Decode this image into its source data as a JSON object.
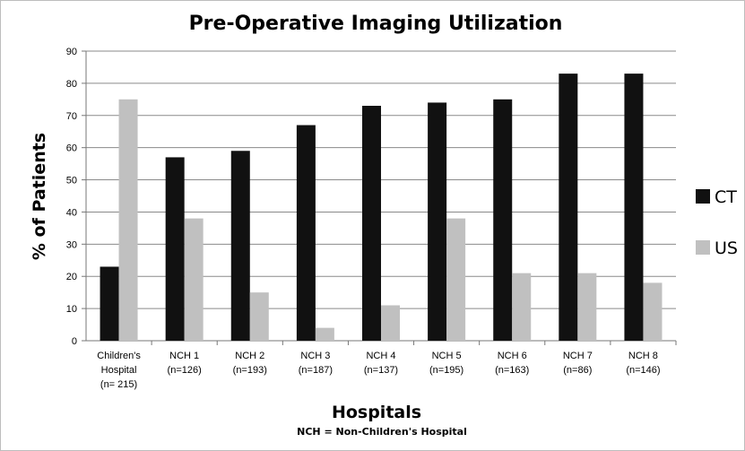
{
  "chart_data": {
    "type": "bar",
    "title": "Pre-Operative Imaging Utilization",
    "xlabel": "Hospitals",
    "ylabel": "% of Patients",
    "footnote": "NCH = Non-Children's Hospital",
    "ylim": [
      0,
      90
    ],
    "yticks": [
      0,
      10,
      20,
      30,
      40,
      50,
      60,
      70,
      80,
      90
    ],
    "grid": "horizontal",
    "legend_position": "right",
    "categories": [
      [
        "Children's",
        "Hospital",
        "(n= 215)"
      ],
      [
        "NCH 1",
        "(n=126)"
      ],
      [
        "NCH 2",
        "(n=193)"
      ],
      [
        "NCH 3",
        "(n=187)"
      ],
      [
        "NCH 4",
        "(n=137)"
      ],
      [
        "NCH 5",
        "(n=195)"
      ],
      [
        "NCH 6",
        "(n=163)"
      ],
      [
        "NCH 7",
        "(n=86)"
      ],
      [
        "NCH 8",
        "(n=146)"
      ]
    ],
    "series": [
      {
        "name": "CT",
        "color": "#111111",
        "values": [
          23,
          57,
          59,
          67,
          73,
          74,
          75,
          83,
          83
        ]
      },
      {
        "name": "US",
        "color": "#c0c0c0",
        "values": [
          75,
          38,
          15,
          4,
          11,
          38,
          21,
          21,
          18
        ]
      }
    ]
  }
}
